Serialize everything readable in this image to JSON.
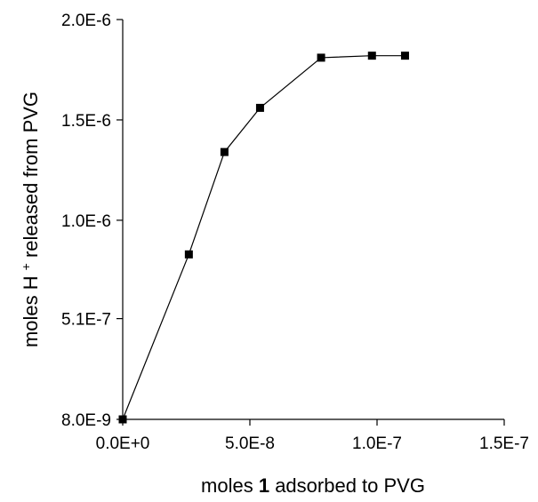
{
  "chart_data": {
    "type": "line",
    "xlabel_parts": [
      "moles ",
      "1",
      " adsorbed to PVG"
    ],
    "ylabel_parts": [
      "moles H",
      "+",
      " released from PVG"
    ],
    "x_ticks": [
      {
        "value": 0,
        "label": "0.0E+0"
      },
      {
        "value": 5e-08,
        "label": "5.0E-8"
      },
      {
        "value": 1e-07,
        "label": "1.0E-7"
      },
      {
        "value": 1.5e-07,
        "label": "1.5E-7"
      }
    ],
    "y_ticks": [
      {
        "value": 8e-09,
        "label": "8.0E-9"
      },
      {
        "value": 5.1e-07,
        "label": "5.1E-7"
      },
      {
        "value": 1e-06,
        "label": "1.0E-6"
      },
      {
        "value": 1.5e-06,
        "label": "1.5E-6"
      },
      {
        "value": 2e-06,
        "label": "2.0E-6"
      }
    ],
    "xlim": [
      0,
      1.5e-07
    ],
    "ylim": [
      8e-09,
      2e-06
    ],
    "grid": false,
    "marker": "square",
    "series": [
      {
        "x": [
          0,
          2.6e-08,
          4e-08,
          5.4e-08,
          7.8e-08,
          9.8e-08,
          1.11e-07
        ],
        "y": [
          8e-09,
          8.3e-07,
          1.34e-06,
          1.56e-06,
          1.81e-06,
          1.82e-06,
          1.82e-06
        ]
      }
    ]
  }
}
